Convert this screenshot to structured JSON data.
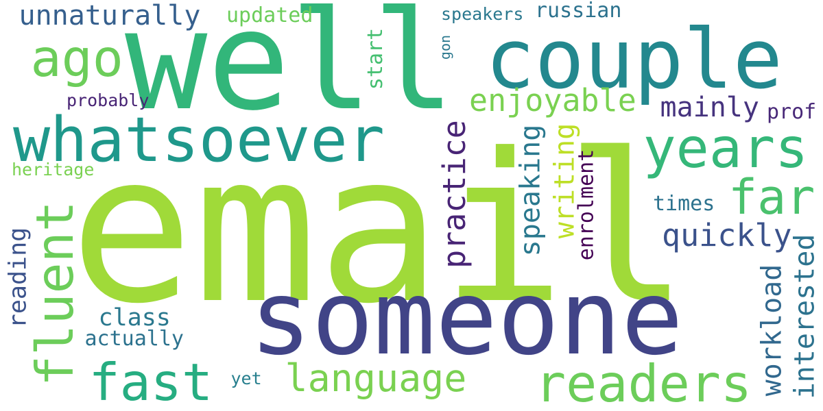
{
  "words": [
    {
      "text": "email",
      "color": "#a0da39",
      "vertical": false
    },
    {
      "text": "well",
      "color": "#32b67a",
      "vertical": false
    },
    {
      "text": "someone",
      "color": "#414487",
      "vertical": false
    },
    {
      "text": "couple",
      "color": "#23888e",
      "vertical": false
    },
    {
      "text": "whatsoever",
      "color": "#1f988b",
      "vertical": false
    },
    {
      "text": "years",
      "color": "#35b779",
      "vertical": false
    },
    {
      "text": "readers",
      "color": "#6ccd5a",
      "vertical": false
    },
    {
      "text": "fast",
      "color": "#26ad81",
      "vertical": false
    },
    {
      "text": "ago",
      "color": "#6ccd5a",
      "vertical": false
    },
    {
      "text": "fluent",
      "color": "#6ccd5a",
      "vertical": true
    },
    {
      "text": "far",
      "color": "#4ac16d",
      "vertical": false
    },
    {
      "text": "language",
      "color": "#7ad151",
      "vertical": false
    },
    {
      "text": "unnaturally",
      "color": "#355f8d",
      "vertical": false
    },
    {
      "text": "practice",
      "color": "#482475",
      "vertical": true
    },
    {
      "text": "quickly",
      "color": "#3b528b",
      "vertical": false
    },
    {
      "text": "enjoyable",
      "color": "#7ad151",
      "vertical": false
    },
    {
      "text": "mainly",
      "color": "#46337e",
      "vertical": false
    },
    {
      "text": "speaking",
      "color": "#2a788e",
      "vertical": true
    },
    {
      "text": "writing",
      "color": "#bddf26",
      "vertical": true
    },
    {
      "text": "workload",
      "color": "#31688e",
      "vertical": true
    },
    {
      "text": "interested",
      "color": "#2c728e",
      "vertical": true
    },
    {
      "text": "enrolment",
      "color": "#440154",
      "vertical": true
    },
    {
      "text": "reading",
      "color": "#3b528b",
      "vertical": true
    },
    {
      "text": "class",
      "color": "#2a788e",
      "vertical": false
    },
    {
      "text": "actually",
      "color": "#2c728e",
      "vertical": false
    },
    {
      "text": "russian",
      "color": "#2c728e",
      "vertical": false
    },
    {
      "text": "updated",
      "color": "#6ccd5a",
      "vertical": false
    },
    {
      "text": "speakers",
      "color": "#2a788e",
      "vertical": false
    },
    {
      "text": "start",
      "color": "#44bf70",
      "vertical": true
    },
    {
      "text": "times",
      "color": "#2c728e",
      "vertical": false
    },
    {
      "text": "prof",
      "color": "#482878",
      "vertical": false
    },
    {
      "text": "heritage",
      "color": "#7ad151",
      "vertical": false
    },
    {
      "text": "probably",
      "color": "#482475",
      "vertical": false
    },
    {
      "text": "yet",
      "color": "#277f8e",
      "vertical": false
    },
    {
      "text": "gon",
      "color": "#2a788e",
      "vertical": true
    }
  ]
}
